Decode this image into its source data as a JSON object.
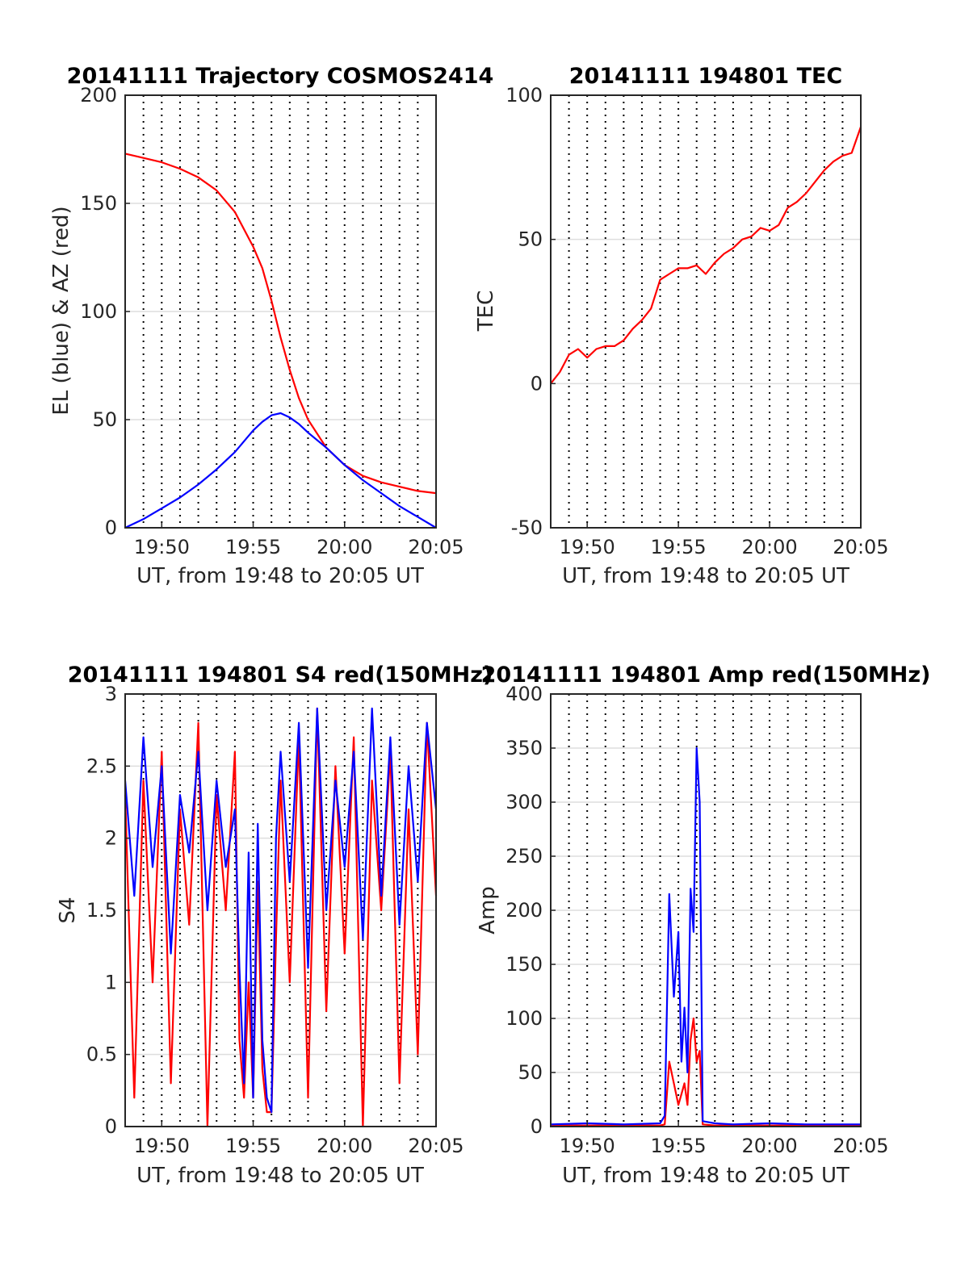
{
  "figure": {
    "x_label": "UT, from 19:48 to 20:05 UT",
    "x_ticks": [
      "19:50",
      "19:55",
      "20:00",
      "20:05"
    ]
  },
  "colors": {
    "red": "#ff0000",
    "blue": "#0000ff",
    "grid": "#dedede",
    "axis": "#262626"
  },
  "chart_data": [
    {
      "type": "line",
      "title": "20141111 Trajectory COSMOS2414",
      "xlabel": "UT, from 19:48 to 20:05 UT",
      "ylabel": "EL (blue) & AZ (red)",
      "xlim": [
        "19:48",
        "20:05"
      ],
      "ylim": [
        0,
        200
      ],
      "yticks": [
        "0",
        "50",
        "100",
        "150",
        "200"
      ],
      "x": [
        "19:48",
        "19:49",
        "19:50",
        "19:51",
        "19:52",
        "19:53",
        "19:54",
        "19:55",
        "19:55:30",
        "19:56",
        "19:56:30",
        "19:57",
        "19:57:30",
        "19:58",
        "19:59",
        "20:00",
        "20:01",
        "20:02",
        "20:03",
        "20:04",
        "20:05"
      ],
      "series": [
        {
          "color": "red",
          "values": [
            173,
            171,
            169,
            166,
            162,
            156,
            146,
            130,
            120,
            105,
            88,
            73,
            60,
            50,
            37,
            29,
            24,
            21,
            19,
            17,
            16
          ]
        },
        {
          "color": "blue",
          "values": [
            0,
            4,
            9,
            14,
            20,
            27,
            35,
            45,
            49,
            52,
            53,
            51,
            48,
            44,
            37,
            29,
            22,
            16,
            10,
            5,
            0
          ]
        }
      ]
    },
    {
      "type": "line",
      "title": "20141111 194801 TEC",
      "xlabel": "UT, from 19:48 to 20:05 UT",
      "ylabel": "TEC",
      "xlim": [
        "19:48",
        "20:05"
      ],
      "ylim": [
        -50,
        100
      ],
      "yticks": [
        "-50",
        "0",
        "50",
        "100"
      ],
      "x": [
        "19:48",
        "19:48:30",
        "19:49",
        "19:49:30",
        "19:50",
        "19:50:30",
        "19:51",
        "19:51:30",
        "19:52",
        "19:52:30",
        "19:53",
        "19:53:30",
        "19:54",
        "19:54:30",
        "19:55",
        "19:55:30",
        "19:56",
        "19:56:30",
        "19:57",
        "19:57:30",
        "19:58",
        "19:58:30",
        "19:59",
        "19:59:30",
        "20:00",
        "20:00:30",
        "20:01",
        "20:01:30",
        "20:02",
        "20:02:30",
        "20:03",
        "20:03:30",
        "20:04",
        "20:04:30",
        "20:05"
      ],
      "series": [
        {
          "color": "red",
          "values": [
            0,
            4,
            10,
            12,
            9,
            12,
            13,
            13,
            15,
            19,
            22,
            26,
            36,
            38,
            40,
            40,
            41,
            38,
            42,
            45,
            47,
            50,
            51,
            54,
            53,
            55,
            61,
            63,
            66,
            70,
            74,
            77,
            79,
            80,
            89
          ]
        }
      ]
    },
    {
      "type": "line",
      "title": "20141111 194801 S4 red(150MHz)",
      "xlabel": "UT, from 19:48 to 20:05 UT",
      "ylabel": "S4",
      "xlim": [
        "19:48",
        "20:05"
      ],
      "ylim": [
        0,
        3
      ],
      "yticks": [
        "0",
        "0.5",
        "1",
        "1.5",
        "2",
        "2.5",
        "3"
      ],
      "x": [
        "19:48",
        "19:48:30",
        "19:49",
        "19:49:30",
        "19:50",
        "19:50:30",
        "19:51",
        "19:51:30",
        "19:52",
        "19:52:30",
        "19:53",
        "19:53:30",
        "19:54",
        "19:54:15",
        "19:54:30",
        "19:54:45",
        "19:55",
        "19:55:15",
        "19:55:30",
        "19:55:45",
        "19:56",
        "19:56:15",
        "19:56:30",
        "19:57",
        "19:57:30",
        "19:58",
        "19:58:30",
        "19:59",
        "19:59:30",
        "20:00",
        "20:00:30",
        "20:01",
        "20:01:30",
        "20:02",
        "20:02:30",
        "20:03",
        "20:03:30",
        "20:04",
        "20:04:30",
        "20:05"
      ],
      "series": [
        {
          "color": "red",
          "values": [
            2.3,
            0.2,
            2.4,
            1.0,
            2.6,
            0.3,
            2.2,
            1.4,
            2.8,
            0.0,
            2.3,
            1.5,
            2.6,
            0.6,
            0.2,
            1.0,
            0.2,
            1.7,
            0.4,
            0.1,
            0.1,
            1.3,
            2.4,
            1.0,
            2.7,
            0.2,
            2.9,
            0.8,
            2.5,
            1.2,
            2.7,
            0.0,
            2.4,
            1.5,
            2.6,
            0.3,
            2.2,
            0.5,
            2.8,
            1.6
          ]
        },
        {
          "color": "blue",
          "values": [
            2.4,
            1.6,
            2.7,
            1.8,
            2.5,
            1.2,
            2.3,
            1.9,
            2.6,
            1.5,
            2.4,
            1.8,
            2.2,
            1.1,
            0.3,
            1.9,
            0.2,
            2.1,
            0.6,
            0.2,
            0.1,
            2.0,
            2.6,
            1.7,
            2.8,
            1.1,
            2.9,
            1.5,
            2.4,
            1.8,
            2.6,
            1.3,
            2.9,
            1.6,
            2.7,
            1.4,
            2.5,
            1.7,
            2.8,
            2.2
          ]
        }
      ]
    },
    {
      "type": "line",
      "title": "20141111 194801 Amp red(150MHz)",
      "xlabel": "UT, from 19:48 to 20:05 UT",
      "ylabel": "Amp",
      "xlim": [
        "19:48",
        "20:05"
      ],
      "ylim": [
        0,
        400
      ],
      "yticks": [
        "0",
        "50",
        "100",
        "150",
        "200",
        "250",
        "300",
        "350",
        "400"
      ],
      "x": [
        "19:48",
        "19:50",
        "19:52",
        "19:54",
        "19:54:15",
        "19:54:30",
        "19:54:45",
        "19:55",
        "19:55:10",
        "19:55:20",
        "19:55:30",
        "19:55:40",
        "19:55:50",
        "19:56",
        "19:56:10",
        "19:56:20",
        "19:57",
        "19:58",
        "20:00",
        "20:02",
        "20:04",
        "20:05"
      ],
      "series": [
        {
          "color": "red",
          "values": [
            1,
            1,
            1,
            1,
            2,
            60,
            40,
            20,
            30,
            40,
            20,
            80,
            100,
            60,
            70,
            2,
            1,
            1,
            1,
            1,
            1,
            1
          ]
        },
        {
          "color": "blue",
          "values": [
            2,
            3,
            2,
            3,
            10,
            215,
            120,
            180,
            60,
            110,
            50,
            220,
            180,
            350,
            300,
            5,
            3,
            2,
            3,
            2,
            2,
            2
          ]
        }
      ]
    }
  ]
}
